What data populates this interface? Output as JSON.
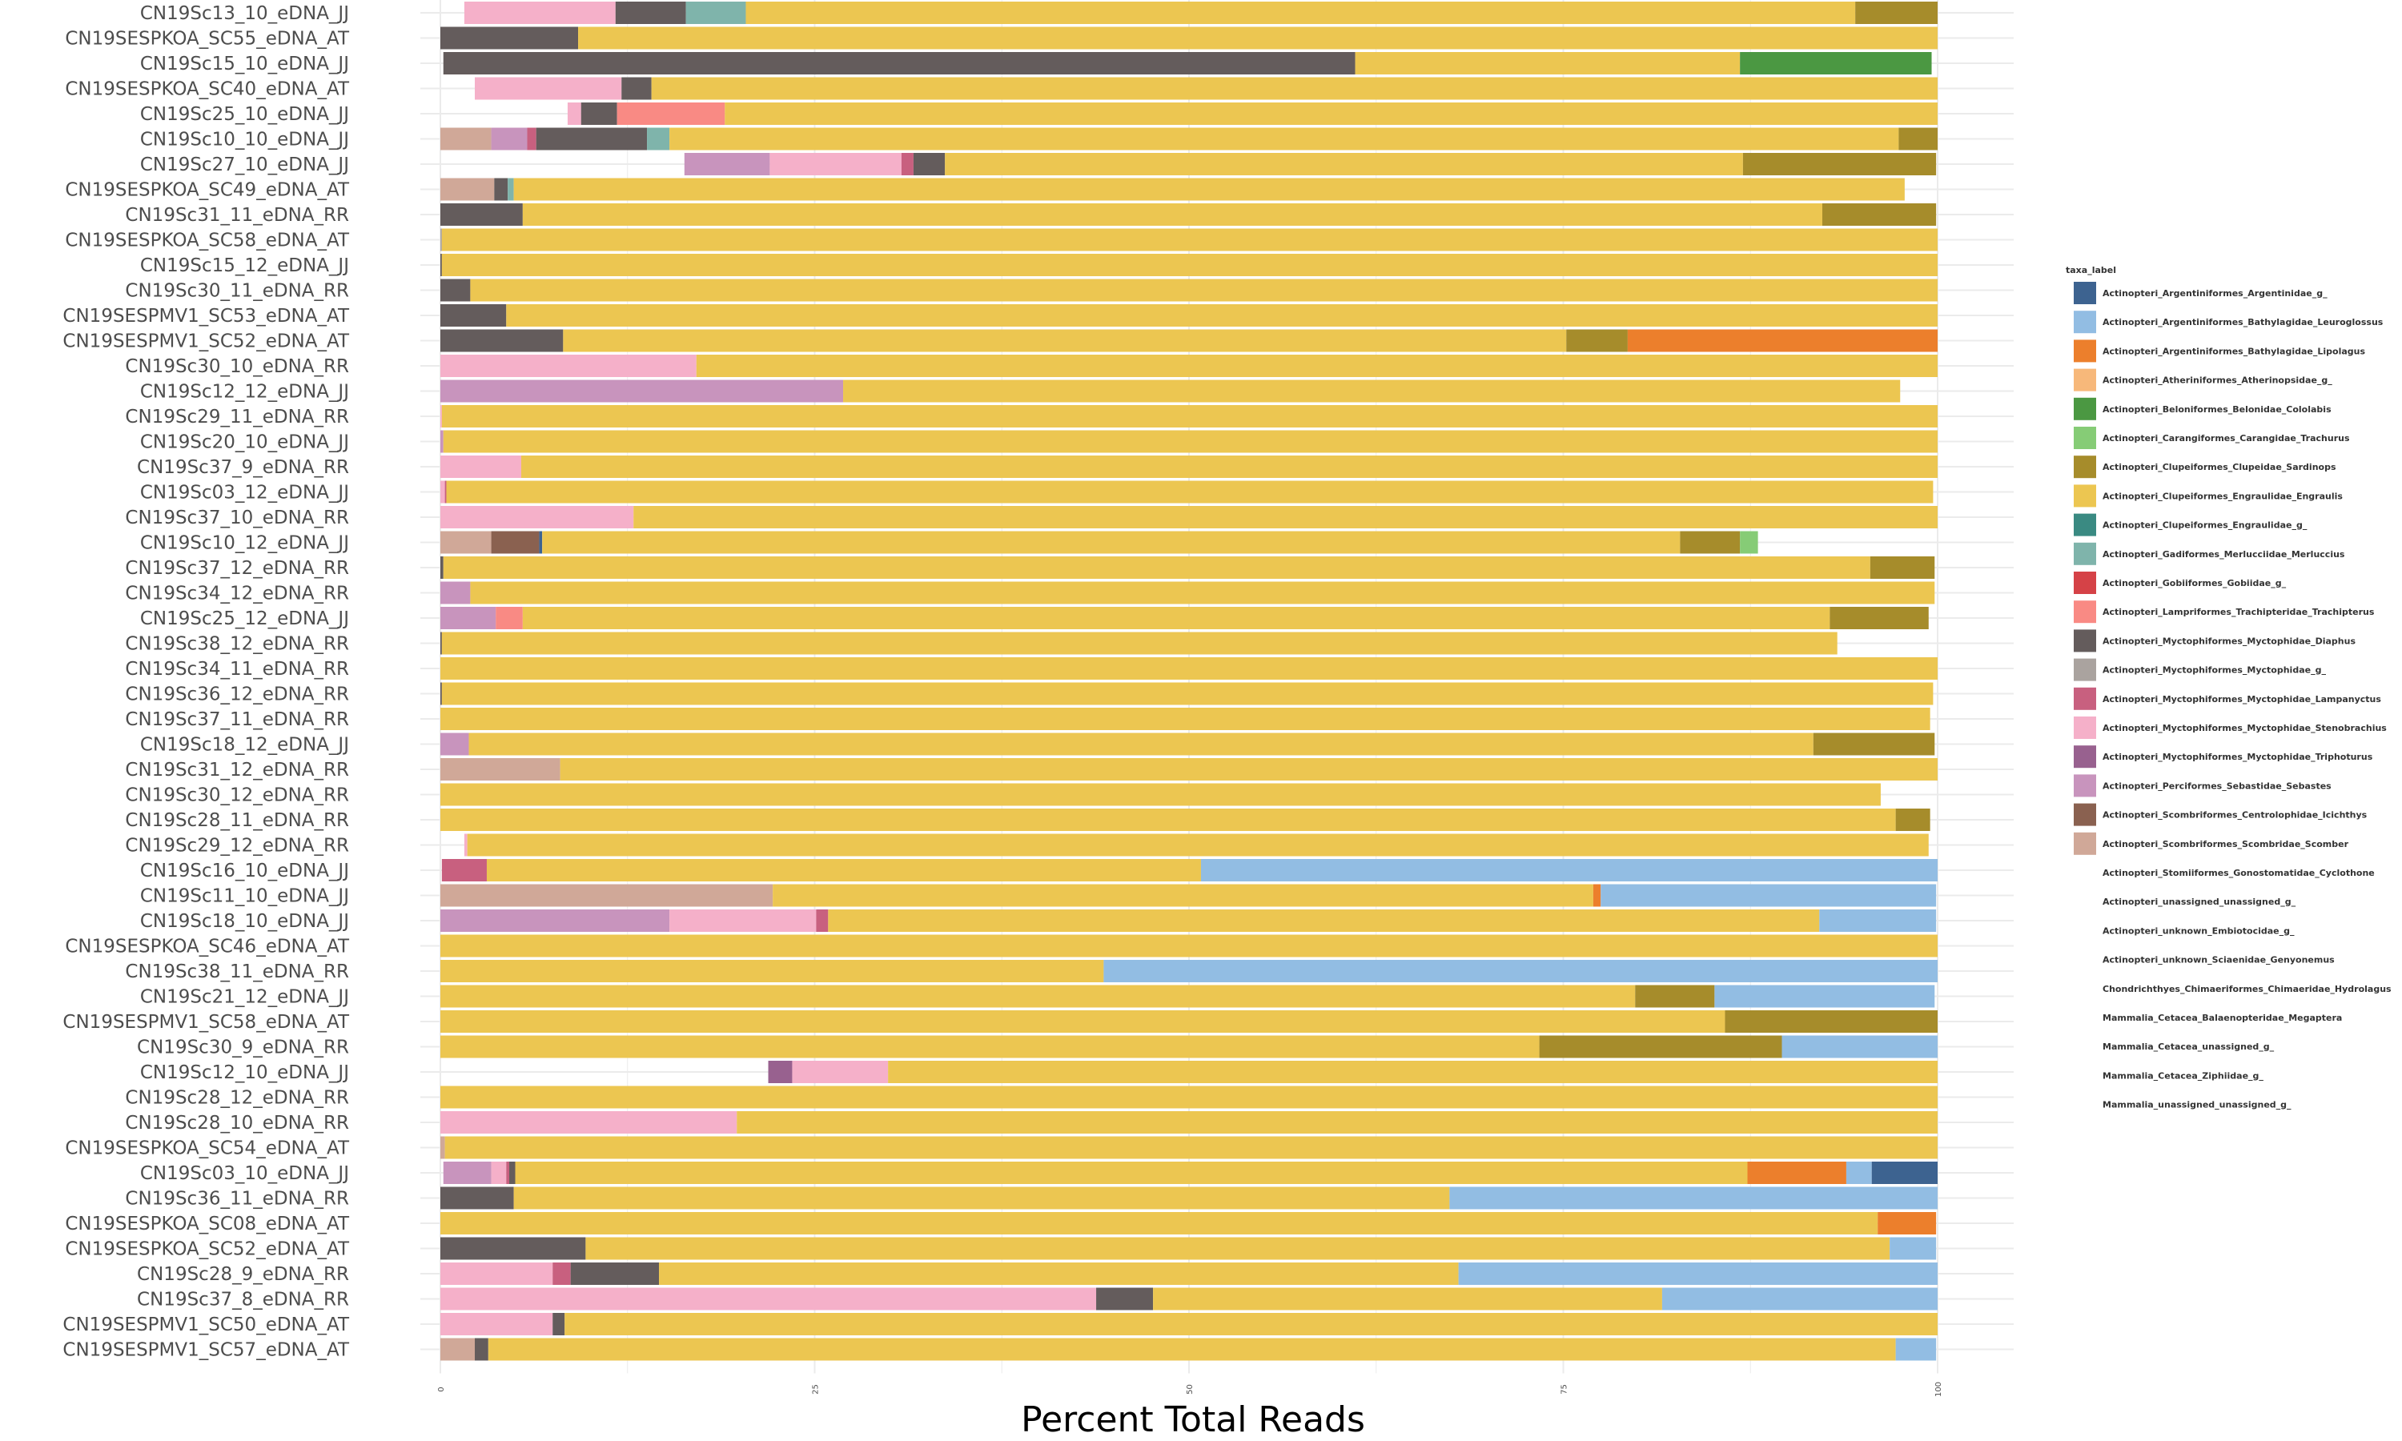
{
  "chart_data": {
    "type": "bar",
    "orientation": "horizontal",
    "stacked": true,
    "xlabel": "Percent Total Reads",
    "ylabel": "",
    "xlim": [
      0,
      100
    ],
    "xticks": [
      "0",
      "25",
      "50",
      "75",
      "100"
    ],
    "grid": true,
    "legend_position": "right",
    "legend_title": "taxa_label",
    "taxa": [
      {
        "label": "Actinopteri_Argentiniformes_Argentinidae_g_",
        "color": "#3d6390"
      },
      {
        "label": "Actinopteri_Argentiniformes_Bathylagidae_Leuroglossus",
        "color": "#92bde3"
      },
      {
        "label": "Actinopteri_Argentiniformes_Bathylagidae_Lipolagus",
        "color": "#ec7f2c"
      },
      {
        "label": "Actinopteri_Atheriniformes_Atherinopsidae_g_",
        "color": "#f7b87a"
      },
      {
        "label": "Actinopteri_Beloniformes_Belonidae_Cololabis",
        "color": "#4b9842"
      },
      {
        "label": "Actinopteri_Carangiformes_Carangidae_Trachurus",
        "color": "#86cc76"
      },
      {
        "label": "Actinopteri_Clupeiformes_Clupeidae_Sardinops",
        "color": "#a68c2b"
      },
      {
        "label": "Actinopteri_Clupeiformes_Engraulidae_Engraulis",
        "color": "#ecc651"
      },
      {
        "label": "Actinopteri_Clupeiformes_Engraulidae_g_",
        "color": "#3a8a82"
      },
      {
        "label": "Actinopteri_Gadiformes_Merlucciidae_Merluccius",
        "color": "#7fb4ab"
      },
      {
        "label": "Actinopteri_Gobiiformes_Gobiidae_g_",
        "color": "#d54247"
      },
      {
        "label": "Actinopteri_Lampriformes_Trachipteridae_Trachipterus",
        "color": "#f98a84"
      },
      {
        "label": "Actinopteri_Myctophiformes_Myctophidae_Diaphus",
        "color": "#645c5c"
      },
      {
        "label": "Actinopteri_Myctophiformes_Myctophidae_g_",
        "color": "#aaa39f"
      },
      {
        "label": "Actinopteri_Myctophiformes_Myctophidae_Lampanyctus",
        "color": "#c8607f"
      },
      {
        "label": "Actinopteri_Myctophiformes_Myctophidae_Stenobrachius",
        "color": "#f5b0c9"
      },
      {
        "label": "Actinopteri_Myctophiformes_Myctophidae_Triphoturus",
        "color": "#98618f"
      },
      {
        "label": "Actinopteri_Perciformes_Sebastidae_Sebastes",
        "color": "#c894bd"
      },
      {
        "label": "Actinopteri_Scombriformes_Centrolophidae_Icichthys",
        "color": "#8a6150"
      },
      {
        "label": "Actinopteri_Scombriformes_Scombridae_Scomber",
        "color": "#d0a898"
      },
      {
        "label": "Actinopteri_Stomiiformes_Gonostomatidae_Cyclothone",
        "color": "#ffffff"
      },
      {
        "label": "Actinopteri_unassigned_unassigned_g_",
        "color": "#ffffff"
      },
      {
        "label": "Actinopteri_unknown_Embiotocidae_g_",
        "color": "#ffffff"
      },
      {
        "label": "Actinopteri_unknown_Sciaenidae_Genyonemus",
        "color": "#ffffff"
      },
      {
        "label": "Chondrichthyes_Chimaeriformes_Chimaeridae_Hydrolagus",
        "color": "#ffffff"
      },
      {
        "label": "Mammalia_Cetacea_Balaenopteridae_Megaptera",
        "color": "#ffffff"
      },
      {
        "label": "Mammalia_Cetacea_unassigned_g_",
        "color": "#ffffff"
      },
      {
        "label": "Mammalia_Cetacea_Ziphiidae_g_",
        "color": "#ffffff"
      },
      {
        "label": "Mammalia_unassigned_unassigned_g_",
        "color": "#ffffff"
      }
    ],
    "samples": [
      {
        "name": "CN19Sc13_10_eDNA_JJ",
        "segments": [
          [
            1.6,
            11.7,
            15
          ],
          [
            11.7,
            16.4,
            12
          ],
          [
            16.4,
            20.4,
            9
          ],
          [
            20.4,
            94.5,
            7
          ],
          [
            94.5,
            100,
            6
          ]
        ]
      },
      {
        "name": "CN19SESPKOA_SC55_eDNA_AT",
        "segments": [
          [
            0,
            9.2,
            12
          ],
          [
            9.2,
            100,
            7
          ]
        ]
      },
      {
        "name": "CN19Sc15_10_eDNA_JJ",
        "segments": [
          [
            0.2,
            61.1,
            12
          ],
          [
            61.1,
            86.8,
            7
          ],
          [
            86.8,
            99.6,
            4
          ]
        ]
      },
      {
        "name": "CN19SESPKOA_SC40_eDNA_AT",
        "segments": [
          [
            2.3,
            12.1,
            15
          ],
          [
            12.1,
            14.1,
            12
          ],
          [
            14.1,
            100,
            7
          ]
        ]
      },
      {
        "name": "CN19Sc25_10_eDNA_JJ",
        "segments": [
          [
            8.5,
            9.4,
            15
          ],
          [
            9.4,
            11.8,
            12
          ],
          [
            11.8,
            19.0,
            11
          ],
          [
            19.0,
            100,
            7
          ]
        ]
      },
      {
        "name": "CN19Sc10_10_eDNA_JJ",
        "segments": [
          [
            0,
            3.4,
            19
          ],
          [
            3.4,
            5.8,
            17
          ],
          [
            5.8,
            6.4,
            14
          ],
          [
            6.4,
            13.8,
            12
          ],
          [
            13.8,
            15.3,
            9
          ],
          [
            15.3,
            97.4,
            7
          ],
          [
            97.4,
            100,
            6
          ]
        ]
      },
      {
        "name": "CN19Sc27_10_eDNA_JJ",
        "segments": [
          [
            16.3,
            22.0,
            17
          ],
          [
            22.0,
            30.8,
            15
          ],
          [
            30.8,
            31.6,
            14
          ],
          [
            31.6,
            33.7,
            12
          ],
          [
            33.7,
            87.0,
            7
          ],
          [
            87.0,
            99.9,
            6
          ]
        ]
      },
      {
        "name": "CN19SESPKOA_SC49_eDNA_AT",
        "segments": [
          [
            0,
            3.6,
            19
          ],
          [
            3.6,
            4.5,
            12
          ],
          [
            4.5,
            4.9,
            9
          ],
          [
            4.9,
            97.8,
            7
          ]
        ]
      },
      {
        "name": "CN19Sc31_11_eDNA_RR",
        "segments": [
          [
            0,
            5.5,
            12
          ],
          [
            5.5,
            92.3,
            7
          ],
          [
            92.3,
            99.9,
            6
          ]
        ]
      },
      {
        "name": "CN19SESPKOA_SC58_eDNA_AT",
        "segments": [
          [
            0,
            0.1,
            13
          ],
          [
            0.1,
            100,
            7
          ]
        ]
      },
      {
        "name": "CN19Sc15_12_eDNA_JJ",
        "segments": [
          [
            0,
            0.1,
            12
          ],
          [
            0.1,
            100,
            7
          ]
        ]
      },
      {
        "name": "CN19Sc30_11_eDNA_RR",
        "segments": [
          [
            0,
            2.0,
            12
          ],
          [
            2.0,
            100,
            7
          ]
        ]
      },
      {
        "name": "CN19SESPMV1_SC53_eDNA_AT",
        "segments": [
          [
            0,
            4.4,
            12
          ],
          [
            4.4,
            100,
            7
          ]
        ]
      },
      {
        "name": "CN19SESPMV1_SC52_eDNA_AT",
        "segments": [
          [
            0,
            8.2,
            12
          ],
          [
            8.2,
            75.2,
            7
          ],
          [
            75.2,
            79.3,
            6
          ],
          [
            79.3,
            100,
            2
          ]
        ]
      },
      {
        "name": "CN19Sc30_10_eDNA_RR",
        "segments": [
          [
            0,
            17.1,
            15
          ],
          [
            17.1,
            100,
            7
          ]
        ]
      },
      {
        "name": "CN19Sc12_12_eDNA_JJ",
        "segments": [
          [
            0,
            26.9,
            17
          ],
          [
            26.9,
            97.5,
            7
          ]
        ]
      },
      {
        "name": "CN19Sc29_11_eDNA_RR",
        "segments": [
          [
            0,
            0.1,
            15
          ],
          [
            0.1,
            100,
            7
          ]
        ]
      },
      {
        "name": "CN19Sc20_10_eDNA_JJ",
        "segments": [
          [
            0,
            0.2,
            17
          ],
          [
            0.2,
            100,
            7
          ]
        ]
      },
      {
        "name": "CN19Sc37_9_eDNA_RR",
        "segments": [
          [
            0,
            5.4,
            15
          ],
          [
            5.4,
            100,
            7
          ]
        ]
      },
      {
        "name": "CN19Sc03_12_eDNA_JJ",
        "segments": [
          [
            0,
            0.3,
            15
          ],
          [
            0.3,
            0.4,
            14
          ],
          [
            0.4,
            99.7,
            7
          ]
        ]
      },
      {
        "name": "CN19Sc37_10_eDNA_RR",
        "segments": [
          [
            0,
            12.9,
            15
          ],
          [
            12.9,
            100,
            7
          ]
        ]
      },
      {
        "name": "CN19Sc10_12_eDNA_JJ",
        "segments": [
          [
            0,
            3.4,
            19
          ],
          [
            3.4,
            6.6,
            18
          ],
          [
            6.6,
            6.8,
            0
          ],
          [
            6.8,
            82.8,
            7
          ],
          [
            82.8,
            86.8,
            6
          ],
          [
            86.8,
            88.0,
            5
          ]
        ]
      },
      {
        "name": "CN19Sc37_12_eDNA_RR",
        "segments": [
          [
            0,
            0.2,
            12
          ],
          [
            0.2,
            95.5,
            7
          ],
          [
            95.5,
            99.8,
            6
          ]
        ]
      },
      {
        "name": "CN19Sc34_12_eDNA_RR",
        "segments": [
          [
            0,
            2.0,
            17
          ],
          [
            2.0,
            99.8,
            7
          ]
        ]
      },
      {
        "name": "CN19Sc25_12_eDNA_JJ",
        "segments": [
          [
            0,
            3.7,
            17
          ],
          [
            3.7,
            5.5,
            11
          ],
          [
            5.5,
            92.8,
            7
          ],
          [
            92.8,
            99.4,
            6
          ]
        ]
      },
      {
        "name": "CN19Sc38_12_eDNA_RR",
        "segments": [
          [
            0,
            0.1,
            12
          ],
          [
            0.1,
            93.3,
            7
          ]
        ]
      },
      {
        "name": "CN19Sc34_11_eDNA_RR",
        "segments": [
          [
            0,
            100,
            7
          ]
        ]
      },
      {
        "name": "CN19Sc36_12_eDNA_RR",
        "segments": [
          [
            0,
            0.1,
            12
          ],
          [
            0.1,
            99.7,
            7
          ]
        ]
      },
      {
        "name": "CN19Sc37_11_eDNA_RR",
        "segments": [
          [
            0,
            99.5,
            7
          ]
        ]
      },
      {
        "name": "CN19Sc18_12_eDNA_JJ",
        "segments": [
          [
            0,
            1.9,
            17
          ],
          [
            1.9,
            91.7,
            7
          ],
          [
            91.7,
            99.8,
            6
          ]
        ]
      },
      {
        "name": "CN19Sc31_12_eDNA_RR",
        "segments": [
          [
            0,
            8.0,
            19
          ],
          [
            8.0,
            100,
            7
          ]
        ]
      },
      {
        "name": "CN19Sc30_12_eDNA_RR",
        "segments": [
          [
            0,
            96.2,
            7
          ]
        ]
      },
      {
        "name": "CN19Sc28_11_eDNA_RR",
        "segments": [
          [
            0,
            97.2,
            7
          ],
          [
            97.2,
            99.5,
            6
          ]
        ]
      },
      {
        "name": "CN19Sc29_12_eDNA_RR",
        "segments": [
          [
            1.6,
            1.8,
            15
          ],
          [
            1.8,
            99.4,
            7
          ]
        ]
      },
      {
        "name": "CN19Sc16_10_eDNA_JJ",
        "segments": [
          [
            0.1,
            3.1,
            14
          ],
          [
            3.1,
            50.8,
            7
          ],
          [
            50.8,
            100,
            1
          ]
        ]
      },
      {
        "name": "CN19Sc11_10_eDNA_JJ",
        "segments": [
          [
            0,
            22.2,
            19
          ],
          [
            22.2,
            77.0,
            7
          ],
          [
            77.0,
            77.5,
            2
          ],
          [
            77.5,
            99.9,
            1
          ]
        ]
      },
      {
        "name": "CN19Sc18_10_eDNA_JJ",
        "segments": [
          [
            0,
            15.3,
            17
          ],
          [
            15.3,
            25.1,
            15
          ],
          [
            25.1,
            25.9,
            14
          ],
          [
            25.9,
            92.1,
            7
          ],
          [
            92.1,
            99.9,
            1
          ]
        ]
      },
      {
        "name": "CN19SESPKOA_SC46_eDNA_AT",
        "segments": [
          [
            0,
            100,
            7
          ]
        ]
      },
      {
        "name": "CN19Sc38_11_eDNA_RR",
        "segments": [
          [
            0,
            44.3,
            7
          ],
          [
            44.3,
            100,
            1
          ]
        ]
      },
      {
        "name": "CN19Sc21_12_eDNA_JJ",
        "segments": [
          [
            0,
            79.8,
            7
          ],
          [
            79.8,
            85.1,
            6
          ],
          [
            85.1,
            99.8,
            1
          ]
        ]
      },
      {
        "name": "CN19SESPMV1_SC58_eDNA_AT",
        "segments": [
          [
            0,
            85.8,
            7
          ],
          [
            85.8,
            100,
            6
          ]
        ]
      },
      {
        "name": "CN19Sc30_9_eDNA_RR",
        "segments": [
          [
            0,
            73.4,
            7
          ],
          [
            73.4,
            89.6,
            6
          ],
          [
            89.6,
            100,
            1
          ]
        ]
      },
      {
        "name": "CN19Sc12_10_eDNA_JJ",
        "segments": [
          [
            21.9,
            23.5,
            16
          ],
          [
            23.5,
            29.9,
            15
          ],
          [
            29.9,
            100,
            7
          ]
        ]
      },
      {
        "name": "CN19Sc28_12_eDNA_RR",
        "segments": [
          [
            0,
            100,
            7
          ]
        ]
      },
      {
        "name": "CN19Sc28_10_eDNA_RR",
        "segments": [
          [
            0,
            19.8,
            15
          ],
          [
            19.8,
            100,
            7
          ]
        ]
      },
      {
        "name": "CN19SESPKOA_SC54_eDNA_AT",
        "segments": [
          [
            0,
            0.3,
            19
          ],
          [
            0.3,
            100,
            7
          ]
        ]
      },
      {
        "name": "CN19Sc03_10_eDNA_JJ",
        "segments": [
          [
            0.2,
            3.4,
            17
          ],
          [
            3.4,
            4.4,
            15
          ],
          [
            4.4,
            4.6,
            14
          ],
          [
            4.6,
            5.0,
            12
          ],
          [
            5.0,
            87.3,
            7
          ],
          [
            87.3,
            93.9,
            2
          ],
          [
            93.9,
            95.6,
            1
          ],
          [
            95.6,
            100,
            0
          ]
        ]
      },
      {
        "name": "CN19Sc36_11_eDNA_RR",
        "segments": [
          [
            0,
            4.9,
            12
          ],
          [
            4.9,
            67.4,
            7
          ],
          [
            67.4,
            100,
            1
          ]
        ]
      },
      {
        "name": "CN19SESPKOA_SC08_eDNA_AT",
        "segments": [
          [
            0,
            96.0,
            7
          ],
          [
            96.0,
            99.9,
            2
          ]
        ]
      },
      {
        "name": "CN19SESPKOA_SC52_eDNA_AT",
        "segments": [
          [
            0,
            9.7,
            12
          ],
          [
            9.7,
            96.8,
            7
          ],
          [
            96.8,
            99.9,
            1
          ]
        ]
      },
      {
        "name": "CN19Sc28_9_eDNA_RR",
        "segments": [
          [
            0,
            7.5,
            15
          ],
          [
            7.5,
            8.7,
            14
          ],
          [
            8.7,
            14.6,
            12
          ],
          [
            14.6,
            68.0,
            7
          ],
          [
            68.0,
            100,
            1
          ]
        ]
      },
      {
        "name": "CN19Sc37_8_eDNA_RR",
        "segments": [
          [
            0,
            43.8,
            15
          ],
          [
            43.8,
            47.6,
            12
          ],
          [
            47.6,
            81.6,
            7
          ],
          [
            81.6,
            100,
            1
          ]
        ]
      },
      {
        "name": "CN19SESPMV1_SC50_eDNA_AT",
        "segments": [
          [
            0,
            7.5,
            15
          ],
          [
            7.5,
            8.3,
            12
          ],
          [
            8.3,
            100,
            7
          ]
        ]
      },
      {
        "name": "CN19SESPMV1_SC57_eDNA_AT",
        "segments": [
          [
            0,
            2.3,
            19
          ],
          [
            2.3,
            3.2,
            12
          ],
          [
            3.2,
            97.2,
            7
          ],
          [
            97.2,
            99.9,
            1
          ]
        ]
      }
    ]
  }
}
